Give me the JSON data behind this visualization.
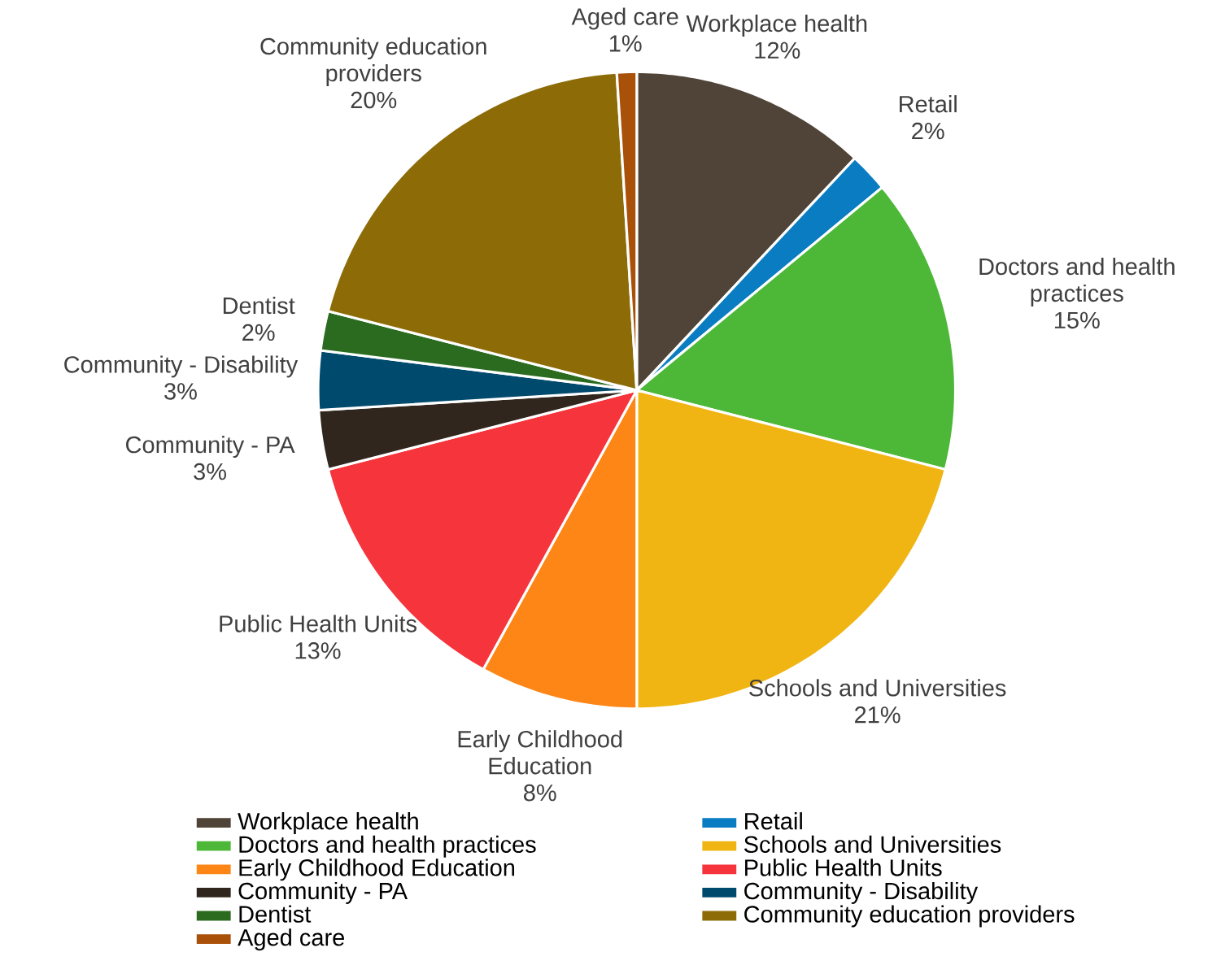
{
  "chart_data": {
    "type": "pie",
    "categories": [
      "Workplace health",
      "Retail",
      "Doctors and health practices",
      "Schools and Universities",
      "Early Childhood Education",
      "Public Health Units",
      "Community - PA",
      "Community - Disability",
      "Dentist",
      "Community education providers",
      "Aged care"
    ],
    "values": [
      12,
      2,
      15,
      21,
      8,
      13,
      3,
      3,
      2,
      20,
      1
    ],
    "value_labels": [
      "12%",
      "2%",
      "15%",
      "21%",
      "8%",
      "13%",
      "3%",
      "3%",
      "2%",
      "20%",
      "1%"
    ],
    "colors": [
      "#4f4437",
      "#0a7dc2",
      "#4db838",
      "#f0b512",
      "#fd8616",
      "#f5343c",
      "#30261d",
      "#004a6e",
      "#2a6b20",
      "#8d6c08",
      "#a95109"
    ],
    "legend": "bottom"
  }
}
